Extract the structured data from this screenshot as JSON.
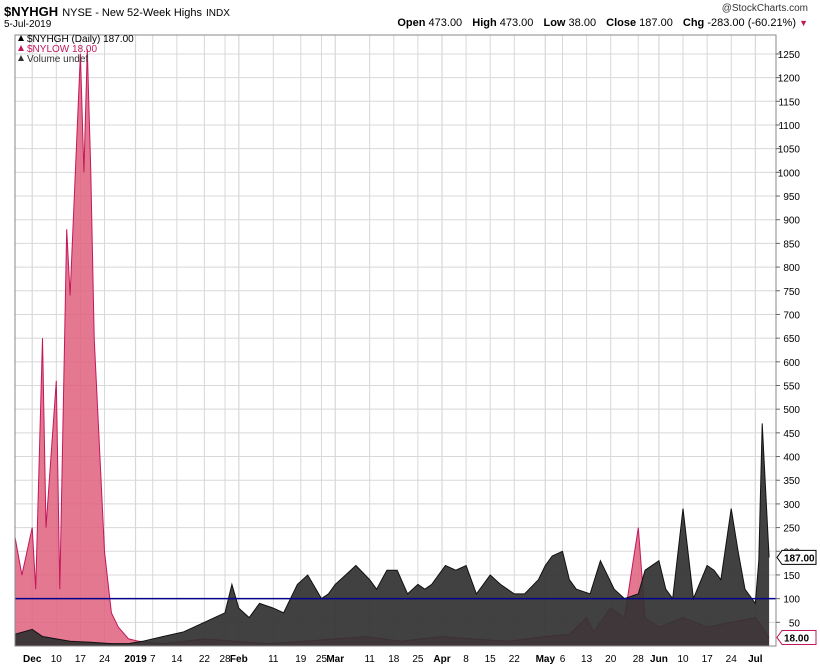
{
  "header": {
    "symbol": "$NYHGH",
    "description": "NYSE - New 52-Week Highs",
    "exchange": "INDX",
    "date": "5-Jul-2019",
    "credit": "@StockCharts.com",
    "open_label": "Open",
    "open": "473.00",
    "high_label": "High",
    "high": "473.00",
    "low_label": "Low",
    "low": "38.00",
    "close_label": "Close",
    "close": "187.00",
    "chg_label": "Chg",
    "chg": "-283.00 (-60.21%)"
  },
  "legend": [
    {
      "text": "$NYHGH (Daily) 187.00",
      "color": "#000000"
    },
    {
      "text": "$NYLOW 18.00",
      "color": "#c2185b"
    },
    {
      "text": "Volume undef",
      "color": "#333333"
    }
  ],
  "colors": {
    "highs": "#333333",
    "lows": "#e0607e",
    "lows_dark": "#8b1a35",
    "ref_line": "#00008b",
    "grid": "#d8d8d8"
  },
  "chart_data": {
    "type": "area",
    "ylim": [
      0,
      1290
    ],
    "y_ticks": [
      50,
      100,
      150,
      200,
      250,
      300,
      350,
      400,
      450,
      500,
      550,
      600,
      650,
      700,
      750,
      800,
      850,
      900,
      950,
      1000,
      1050,
      1100,
      1150,
      1200,
      1250
    ],
    "x_range": [
      "2018-11-28",
      "2019-07-07"
    ],
    "x_ticks": [
      {
        "date": "2018-12-03",
        "label": "Dec",
        "bold": true
      },
      {
        "date": "2018-12-10",
        "label": "10"
      },
      {
        "date": "2018-12-17",
        "label": "17"
      },
      {
        "date": "2018-12-24",
        "label": "24"
      },
      {
        "date": "2019-01-02",
        "label": "2019",
        "bold": true
      },
      {
        "date": "2019-01-07",
        "label": "7"
      },
      {
        "date": "2019-01-14",
        "label": "14"
      },
      {
        "date": "2019-01-22",
        "label": "22"
      },
      {
        "date": "2019-01-28",
        "label": "28"
      },
      {
        "date": "2019-02-01",
        "label": "Feb",
        "bold": true
      },
      {
        "date": "2019-02-11",
        "label": "11"
      },
      {
        "date": "2019-02-19",
        "label": "19"
      },
      {
        "date": "2019-02-25",
        "label": "25"
      },
      {
        "date": "2019-03-01",
        "label": "Mar",
        "bold": true
      },
      {
        "date": "2019-03-11",
        "label": "11"
      },
      {
        "date": "2019-03-18",
        "label": "18"
      },
      {
        "date": "2019-03-25",
        "label": "25"
      },
      {
        "date": "2019-04-01",
        "label": "Apr",
        "bold": true
      },
      {
        "date": "2019-04-08",
        "label": "8"
      },
      {
        "date": "2019-04-15",
        "label": "15"
      },
      {
        "date": "2019-04-22",
        "label": "22"
      },
      {
        "date": "2019-05-01",
        "label": "May",
        "bold": true
      },
      {
        "date": "2019-05-06",
        "label": "6"
      },
      {
        "date": "2019-05-13",
        "label": "13"
      },
      {
        "date": "2019-05-20",
        "label": "20"
      },
      {
        "date": "2019-05-28",
        "label": "28"
      },
      {
        "date": "2019-06-03",
        "label": "Jun",
        "bold": true
      },
      {
        "date": "2019-06-10",
        "label": "10"
      },
      {
        "date": "2019-06-17",
        "label": "17"
      },
      {
        "date": "2019-06-24",
        "label": "24"
      },
      {
        "date": "2019-07-01",
        "label": "Jul",
        "bold": true
      }
    ],
    "reference_line": 100,
    "last_labels": {
      "highs": "187.00",
      "lows": "18.00"
    },
    "series": [
      {
        "name": "$NYHGH",
        "x": [
          "2018-11-28",
          "2018-12-03",
          "2018-12-06",
          "2018-12-10",
          "2018-12-14",
          "2018-12-20",
          "2018-12-26",
          "2018-12-31",
          "2019-01-04",
          "2019-01-10",
          "2019-01-16",
          "2019-01-22",
          "2019-01-28",
          "2019-01-30",
          "2019-02-01",
          "2019-02-04",
          "2019-02-07",
          "2019-02-11",
          "2019-02-14",
          "2019-02-18",
          "2019-02-21",
          "2019-02-25",
          "2019-02-27",
          "2019-03-01",
          "2019-03-04",
          "2019-03-07",
          "2019-03-11",
          "2019-03-13",
          "2019-03-16",
          "2019-03-19",
          "2019-03-22",
          "2019-03-25",
          "2019-03-27",
          "2019-03-29",
          "2019-04-02",
          "2019-04-05",
          "2019-04-08",
          "2019-04-11",
          "2019-04-15",
          "2019-04-18",
          "2019-04-22",
          "2019-04-25",
          "2019-04-29",
          "2019-05-01",
          "2019-05-03",
          "2019-05-06",
          "2019-05-08",
          "2019-05-10",
          "2019-05-14",
          "2019-05-17",
          "2019-05-21",
          "2019-05-24",
          "2019-05-28",
          "2019-05-30",
          "2019-06-03",
          "2019-06-05",
          "2019-06-07",
          "2019-06-10",
          "2019-06-13",
          "2019-06-17",
          "2019-06-19",
          "2019-06-21",
          "2019-06-24",
          "2019-06-26",
          "2019-06-28",
          "2019-07-01",
          "2019-07-02",
          "2019-07-03",
          "2019-07-05"
        ],
        "y": [
          25,
          35,
          20,
          15,
          10,
          8,
          5,
          5,
          10,
          20,
          30,
          50,
          70,
          130,
          80,
          60,
          90,
          80,
          70,
          130,
          150,
          100,
          110,
          130,
          150,
          170,
          140,
          120,
          160,
          160,
          110,
          130,
          120,
          130,
          170,
          160,
          170,
          110,
          150,
          130,
          110,
          110,
          140,
          170,
          190,
          200,
          140,
          120,
          110,
          180,
          120,
          100,
          110,
          160,
          180,
          120,
          100,
          290,
          100,
          170,
          160,
          140,
          290,
          200,
          120,
          90,
          180,
          470,
          187
        ]
      },
      {
        "name": "$NYLOW",
        "x": [
          "2018-11-28",
          "2018-11-30",
          "2018-12-03",
          "2018-12-04",
          "2018-12-06",
          "2018-12-07",
          "2018-12-10",
          "2018-12-11",
          "2018-12-13",
          "2018-12-14",
          "2018-12-17",
          "2018-12-18",
          "2018-12-19",
          "2018-12-20",
          "2018-12-21",
          "2018-12-24",
          "2018-12-26",
          "2018-12-28",
          "2018-12-31",
          "2019-01-03",
          "2019-01-10",
          "2019-01-22",
          "2019-01-31",
          "2019-02-10",
          "2019-02-20",
          "2019-03-01",
          "2019-03-10",
          "2019-03-20",
          "2019-04-01",
          "2019-04-10",
          "2019-04-20",
          "2019-05-01",
          "2019-05-08",
          "2019-05-13",
          "2019-05-15",
          "2019-05-20",
          "2019-05-24",
          "2019-05-28",
          "2019-05-30",
          "2019-06-03",
          "2019-06-10",
          "2019-06-17",
          "2019-06-24",
          "2019-07-01",
          "2019-07-05"
        ],
        "y": [
          230,
          150,
          250,
          120,
          650,
          250,
          560,
          120,
          880,
          740,
          1250,
          1000,
          1260,
          1000,
          650,
          200,
          70,
          40,
          15,
          10,
          5,
          15,
          10,
          5,
          10,
          15,
          20,
          10,
          20,
          15,
          10,
          20,
          25,
          60,
          30,
          80,
          60,
          250,
          60,
          40,
          60,
          40,
          50,
          60,
          18
        ]
      }
    ]
  }
}
